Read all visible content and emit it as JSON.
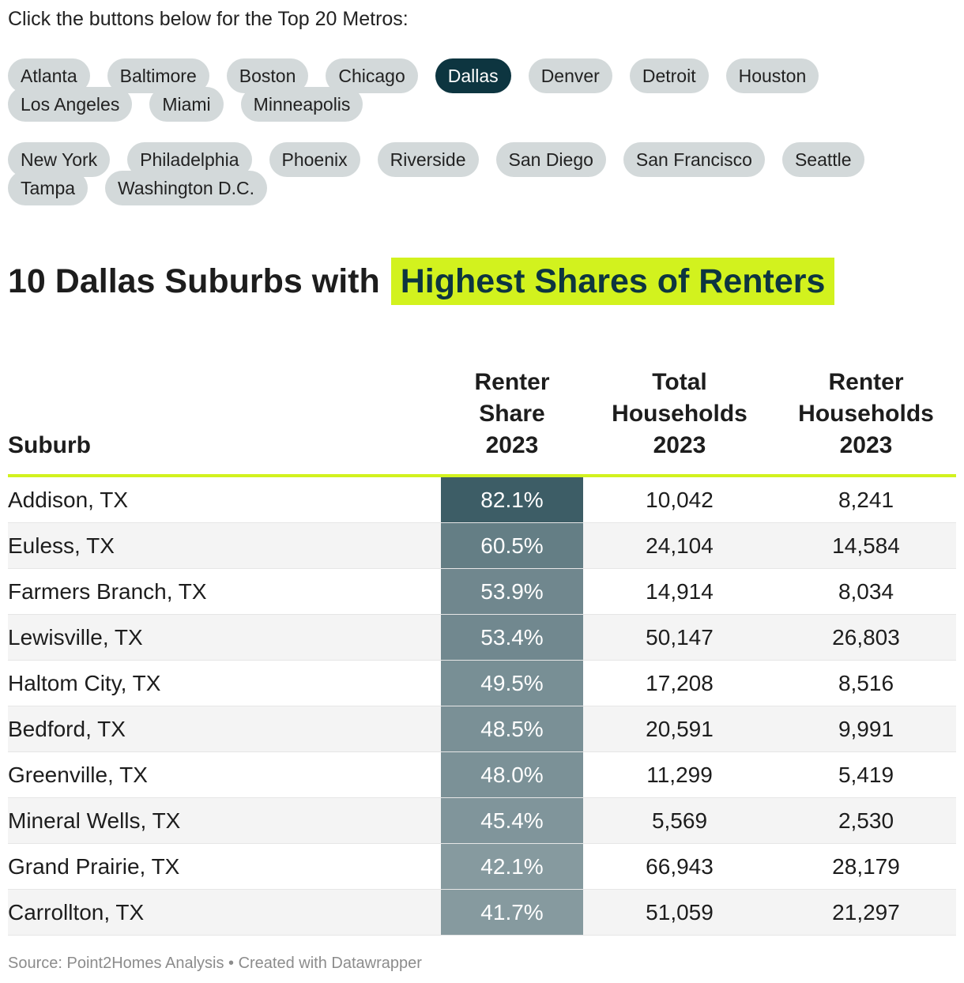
{
  "intro": "Click the buttons below for the Top 20 Metros:",
  "metros_row1": [
    "Atlanta",
    "Baltimore",
    "Boston",
    "Chicago",
    "Dallas",
    "Denver",
    "Detroit",
    "Houston",
    "Los Angeles",
    "Miami",
    "Minneapolis"
  ],
  "metros_row2": [
    "New York",
    "Philadelphia",
    "Phoenix",
    "Riverside",
    "San Diego",
    "San Francisco",
    "Seattle",
    "Tampa",
    "Washington D.C."
  ],
  "active_metro": "Dallas",
  "colors": {
    "active_pill": "#0d3540",
    "pill": "#d3d9da",
    "highlight": "#d2f21e",
    "share_cell": "#0d3540"
  },
  "heading": {
    "prefix": "10 Dallas Suburbs with",
    "highlight": "Highest Shares of Renters"
  },
  "chart_data": {
    "type": "table",
    "columns": [
      "Suburb",
      "Renter Share 2023",
      "Total Households 2023",
      "Renter Households 2023"
    ],
    "rows": [
      {
        "suburb": "Addison, TX",
        "renter_share": "82.1%",
        "total_households": "10,042",
        "renter_households": "8,241",
        "share_value": 82.1
      },
      {
        "suburb": "Euless, TX",
        "renter_share": "60.5%",
        "total_households": "24,104",
        "renter_households": "14,584",
        "share_value": 60.5
      },
      {
        "suburb": "Farmers Branch, TX",
        "renter_share": "53.9%",
        "total_households": "14,914",
        "renter_households": "8,034",
        "share_value": 53.9
      },
      {
        "suburb": "Lewisville, TX",
        "renter_share": "53.4%",
        "total_households": "50,147",
        "renter_households": "26,803",
        "share_value": 53.4
      },
      {
        "suburb": "Haltom City, TX",
        "renter_share": "49.5%",
        "total_households": "17,208",
        "renter_households": "8,516",
        "share_value": 49.5
      },
      {
        "suburb": "Bedford, TX",
        "renter_share": "48.5%",
        "total_households": "20,591",
        "renter_households": "9,991",
        "share_value": 48.5
      },
      {
        "suburb": "Greenville, TX",
        "renter_share": "48.0%",
        "total_households": "11,299",
        "renter_households": "5,419",
        "share_value": 48.0
      },
      {
        "suburb": "Mineral Wells, TX",
        "renter_share": "45.4%",
        "total_households": "5,569",
        "renter_households": "2,530",
        "share_value": 45.4
      },
      {
        "suburb": "Grand Prairie, TX",
        "renter_share": "42.1%",
        "total_households": "66,943",
        "renter_households": "28,179",
        "share_value": 42.1
      },
      {
        "suburb": "Carrollton, TX",
        "renter_share": "41.7%",
        "total_households": "51,059",
        "renter_households": "21,297",
        "share_value": 41.7
      }
    ]
  },
  "source": "Source: Point2Homes Analysis • Created with Datawrapper"
}
